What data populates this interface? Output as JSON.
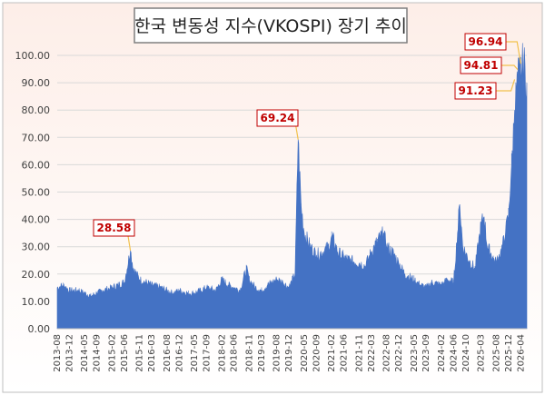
{
  "chart_data": {
    "type": "area",
    "title": "한국 변동성 지수(VKOSPI) 장기 추이",
    "xlabel": "",
    "ylabel": "",
    "ylim": [
      0,
      100
    ],
    "yticks": [
      "0.00",
      "10.00",
      "20.00",
      "30.00",
      "40.00",
      "50.00",
      "60.00",
      "70.00",
      "80.00",
      "90.00",
      "100.00"
    ],
    "grid": true,
    "legend": "none",
    "colors": {
      "fill": "#4472c4",
      "label_text": "#c00000",
      "label_border": "#c00000",
      "leader_line": "#f2c14e",
      "bg_top": "#fdeee8",
      "bg_bottom": "#ffffff"
    },
    "x_ticks": [
      "2013-08",
      "2013-12",
      "2014-05",
      "2014-09",
      "2015-02",
      "2015-06",
      "2015-11",
      "2016-03",
      "2016-08",
      "2016-12",
      "2017-05",
      "2017-09",
      "2018-02",
      "2018-06",
      "2018-11",
      "2019-03",
      "2019-08",
      "2019-12",
      "2020-05",
      "2020-09",
      "2021-02",
      "2021-06",
      "2021-11",
      "2022-03",
      "2022-08",
      "2022-12",
      "2023-05",
      "2023-09",
      "2024-02",
      "2024-06",
      "2024-10",
      "2025-03",
      "2025-08",
      "2025-12",
      "2026-04"
    ],
    "series": [
      {
        "x": [
          "2013-08",
          "2013-10",
          "2013-12",
          "2014-03",
          "2014-05",
          "2014-07",
          "2014-09",
          "2014-11",
          "2015-02",
          "2015-04",
          "2015-06",
          "2015-08",
          "2015-09",
          "2015-11",
          "2016-01",
          "2016-03",
          "2016-06",
          "2016-08",
          "2016-10",
          "2016-12",
          "2017-03",
          "2017-05",
          "2017-07",
          "2017-09",
          "2017-12",
          "2018-02",
          "2018-04",
          "2018-06",
          "2018-08",
          "2018-10",
          "2018-11",
          "2019-01",
          "2019-03",
          "2019-05",
          "2019-08",
          "2019-10",
          "2019-12",
          "2020-02",
          "2020-03",
          "2020-04",
          "2020-05",
          "2020-07",
          "2020-09",
          "2020-11",
          "2021-01",
          "2021-02",
          "2021-04",
          "2021-06",
          "2021-08",
          "2021-11",
          "2022-01",
          "2022-03",
          "2022-05",
          "2022-07",
          "2022-08",
          "2022-10",
          "2022-12",
          "2023-02",
          "2023-05",
          "2023-07",
          "2023-09",
          "2023-11",
          "2024-02",
          "2024-04",
          "2024-06",
          "2024-08",
          "2024-09",
          "2024-11",
          "2025-01",
          "2025-03",
          "2025-04",
          "2025-05",
          "2025-07",
          "2025-08",
          "2025-10",
          "2025-11",
          "2025-12",
          "2026-01",
          "2026-02",
          "2026-03",
          "2026-04",
          "2026-05",
          "2026-06"
        ],
        "values": [
          15,
          16,
          14,
          14,
          13,
          12,
          13,
          14,
          15,
          16,
          17,
          28.58,
          22,
          18,
          17,
          16,
          15,
          14,
          13,
          14,
          13,
          13,
          14,
          15,
          14,
          18,
          16,
          15,
          14,
          22,
          18,
          15,
          14,
          16,
          18,
          17,
          15,
          20,
          69.24,
          45,
          35,
          30,
          27,
          28,
          30,
          34,
          28,
          26,
          25,
          24,
          23,
          28,
          32,
          35,
          30,
          28,
          24,
          20,
          18,
          16,
          15,
          17,
          16,
          18,
          17,
          45.5,
          30,
          25,
          22,
          38,
          41,
          30,
          26,
          24,
          30,
          35,
          42,
          60,
          80,
          91.23,
          94.81,
          96.94,
          90
        ]
      }
    ],
    "annotations": [
      "28.58",
      "69.24",
      "91.23",
      "94.81",
      "96.94"
    ]
  }
}
